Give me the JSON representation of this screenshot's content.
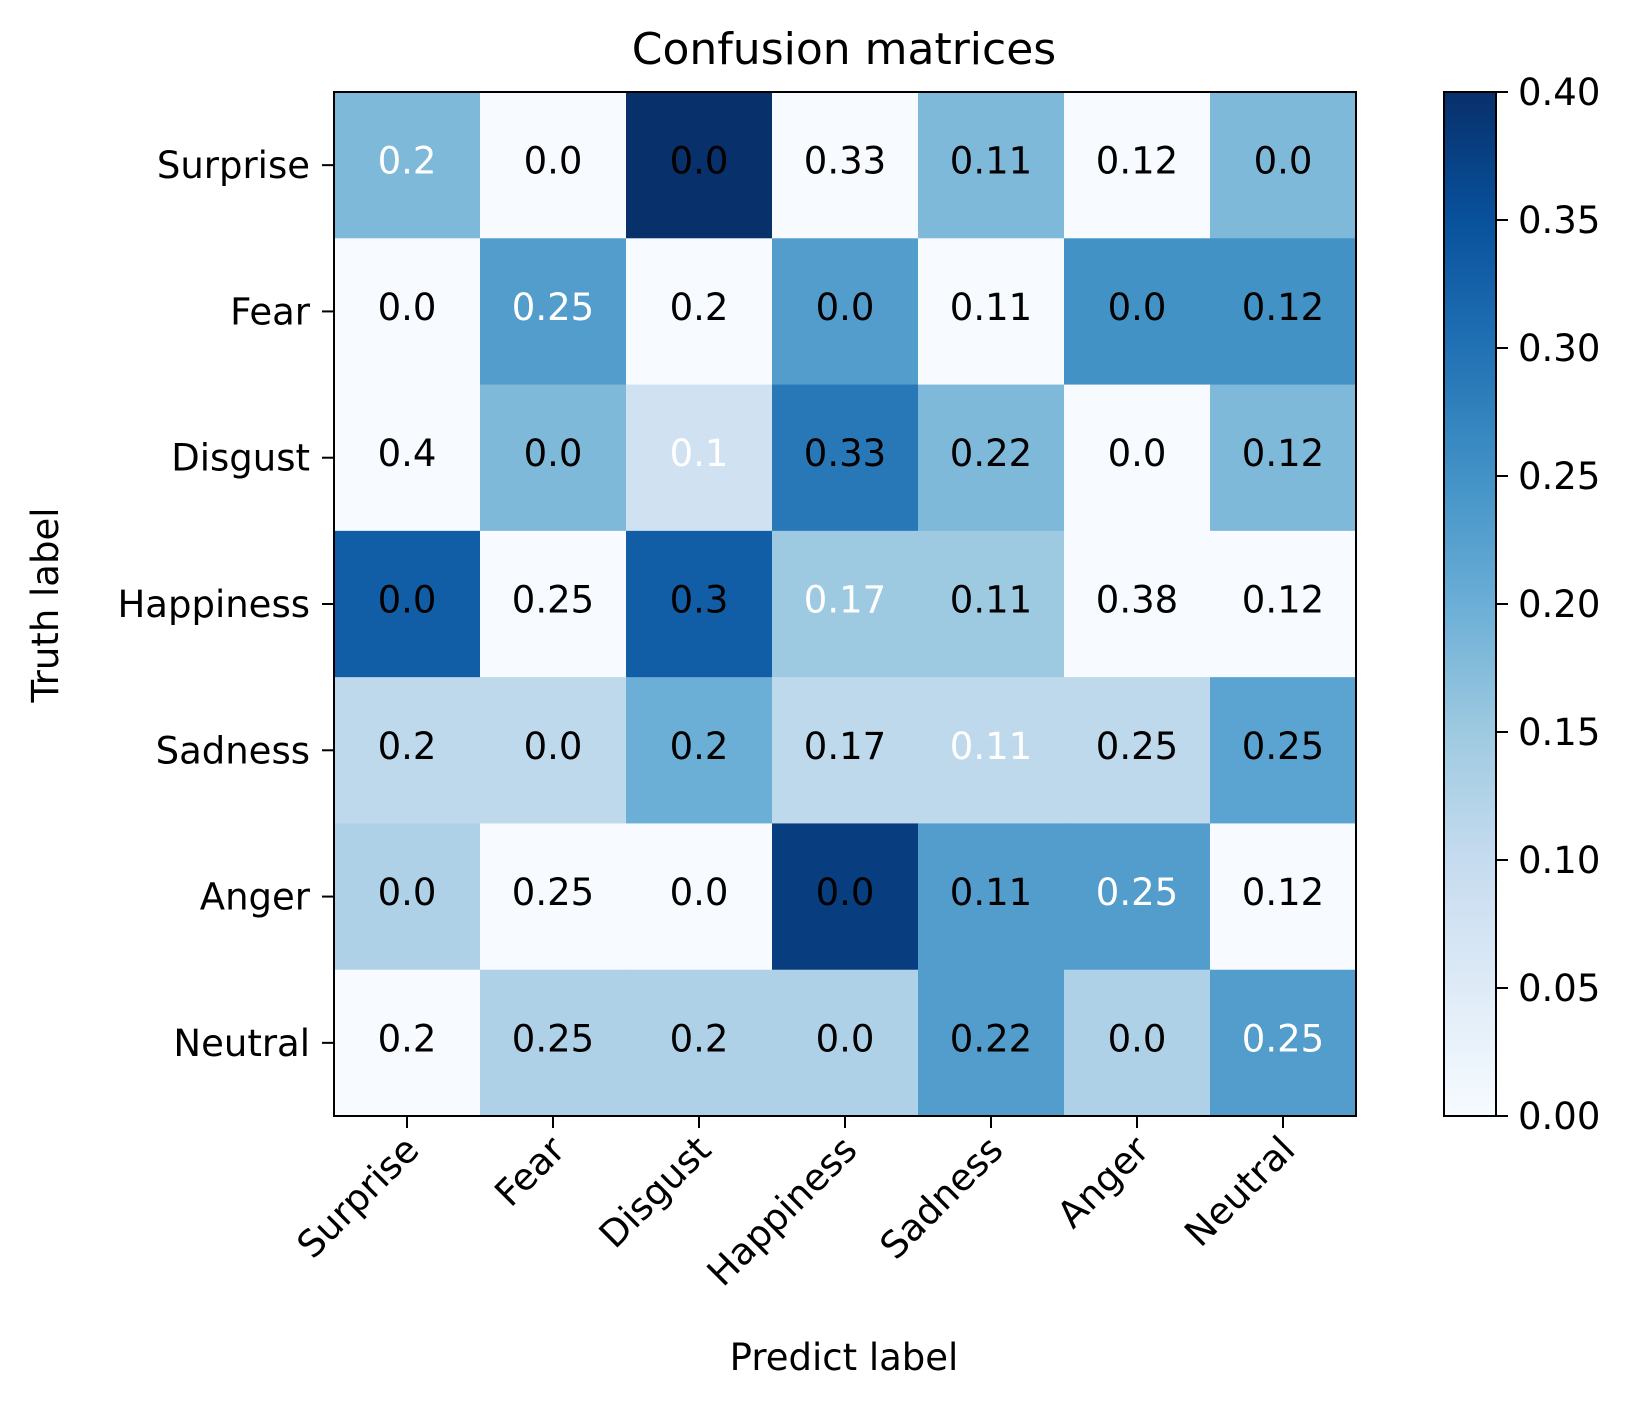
{
  "chart_data": {
    "type": "heatmap",
    "title": "Confusion matrices",
    "xlabel": "Predict label",
    "ylabel": "Truth label",
    "x_categories": [
      "Surprise",
      "Fear",
      "Disgust",
      "Happiness",
      "Sadness",
      "Anger",
      "Neutral"
    ],
    "y_categories": [
      "Surprise",
      "Fear",
      "Disgust",
      "Happiness",
      "Sadness",
      "Anger",
      "Neutral"
    ],
    "cell_labels": [
      [
        "0.2",
        "0.0",
        "0.0",
        "0.33",
        "0.11",
        "0.12",
        "0.0"
      ],
      [
        "0.0",
        "0.25",
        "0.2",
        "0.0",
        "0.11",
        "0.0",
        "0.12"
      ],
      [
        "0.4",
        "0.0",
        "0.1",
        "0.33",
        "0.22",
        "0.0",
        "0.12"
      ],
      [
        "0.0",
        "0.25",
        "0.3",
        "0.17",
        "0.11",
        "0.38",
        "0.12"
      ],
      [
        "0.2",
        "0.0",
        "0.2",
        "0.17",
        "0.11",
        "0.25",
        "0.25"
      ],
      [
        "0.0",
        "0.25",
        "0.0",
        "0.0",
        "0.11",
        "0.25",
        "0.12"
      ],
      [
        "0.2",
        "0.25",
        "0.2",
        "0.0",
        "0.22",
        "0.0",
        "0.25"
      ]
    ],
    "color_values": [
      [
        0.18,
        0.0,
        0.4,
        0.0,
        0.18,
        0.0,
        0.18
      ],
      [
        0.0,
        0.23,
        0.0,
        0.23,
        0.0,
        0.25,
        0.25
      ],
      [
        0.0,
        0.18,
        0.08,
        0.29,
        0.18,
        0.0,
        0.18
      ],
      [
        0.33,
        0.0,
        0.33,
        0.15,
        0.15,
        0.0,
        0.0
      ],
      [
        0.11,
        0.11,
        0.2,
        0.11,
        0.11,
        0.11,
        0.22
      ],
      [
        0.13,
        0.0,
        0.0,
        0.38,
        0.23,
        0.23,
        0.0
      ],
      [
        0.0,
        0.13,
        0.13,
        0.13,
        0.23,
        0.13,
        0.23
      ]
    ],
    "label_colors": [
      [
        "#ffffff",
        "#000000",
        "#000000",
        "#000000",
        "#000000",
        "#000000",
        "#000000"
      ],
      [
        "#000000",
        "#ffffff",
        "#000000",
        "#000000",
        "#000000",
        "#000000",
        "#000000"
      ],
      [
        "#000000",
        "#000000",
        "#ffffff",
        "#000000",
        "#000000",
        "#000000",
        "#000000"
      ],
      [
        "#000000",
        "#000000",
        "#000000",
        "#ffffff",
        "#000000",
        "#000000",
        "#000000"
      ],
      [
        "#000000",
        "#000000",
        "#000000",
        "#000000",
        "#ffffff",
        "#000000",
        "#000000"
      ],
      [
        "#000000",
        "#000000",
        "#000000",
        "#000000",
        "#000000",
        "#ffffff",
        "#000000"
      ],
      [
        "#000000",
        "#000000",
        "#000000",
        "#000000",
        "#000000",
        "#000000",
        "#ffffff"
      ]
    ],
    "colorbar": {
      "range": [
        0.0,
        0.4
      ],
      "ticks": [
        "0.00",
        "0.05",
        "0.10",
        "0.15",
        "0.20",
        "0.25",
        "0.30",
        "0.35",
        "0.40"
      ],
      "colormap": "Blues"
    },
    "colormap_stops": [
      "#f7fbff",
      "#deebf7",
      "#c6dbef",
      "#9ecae1",
      "#6baed6",
      "#4292c6",
      "#2171b5",
      "#08519c",
      "#08306b"
    ]
  }
}
